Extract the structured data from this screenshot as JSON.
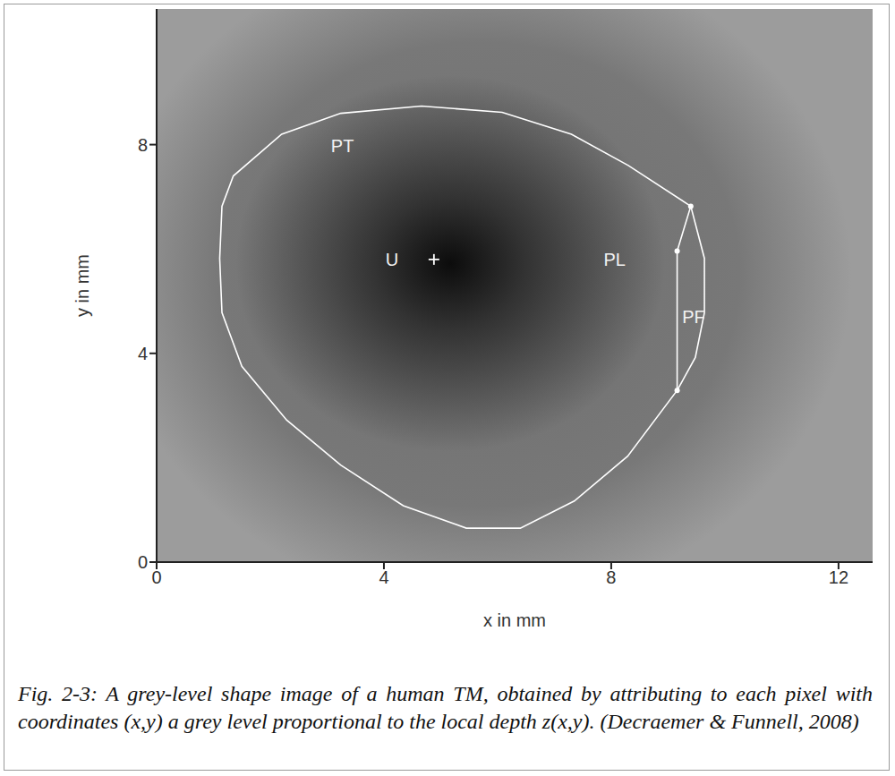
{
  "chart_data": {
    "type": "line",
    "xlabel": "x in mm",
    "ylabel": "y in mm",
    "xlim": [
      0,
      12.6
    ],
    "xticks": [
      0,
      4,
      8,
      12
    ],
    "ylim": [
      0,
      10.6
    ],
    "yticks": [
      0,
      4,
      8
    ],
    "grid": false,
    "series": [
      {
        "color": "#ffffff",
        "marker": "none",
        "line_style": "solid",
        "x": [
          4.66,
          6.08,
          7.3,
          8.3,
          9.4,
          9.64,
          9.64,
          9.48,
          9.16,
          8.29,
          7.35,
          6.4,
          5.45,
          4.34,
          3.24,
          2.29,
          1.5,
          1.15,
          1.11,
          1.15,
          1.35,
          2.2,
          3.24,
          4.66
        ],
        "y": [
          8.74,
          8.62,
          8.2,
          7.6,
          6.82,
          5.82,
          4.78,
          3.92,
          3.29,
          2.03,
          1.17,
          0.65,
          0.65,
          1.08,
          1.86,
          2.72,
          3.75,
          4.78,
          5.82,
          6.82,
          7.4,
          8.2,
          8.6,
          8.74
        ]
      },
      {
        "color": "#ffffff",
        "marker": "circle",
        "line_style": "solid",
        "x": [
          9.4,
          9.16,
          9.16
        ],
        "y": [
          6.82,
          5.96,
          3.29
        ]
      },
      {
        "color": "#ffffff",
        "marker": "cross",
        "line_style": "none",
        "x": [
          4.88
        ],
        "y": [
          5.8
        ]
      }
    ],
    "annotations": [
      {
        "text": "PT",
        "x": 3.27,
        "y": 7.97
      },
      {
        "text": "U",
        "x": 4.14,
        "y": 5.8
      },
      {
        "text": "PL",
        "x": 8.06,
        "y": 5.8
      },
      {
        "text": "PF",
        "x": 9.45,
        "y": 4.7
      }
    ],
    "caption": "Fig. 2-3: A grey-level shape image of a human TM, obtained by attributing to each pixel with coordinates (x,y) a grey level proportional to the local depth z(x,y). (Decraemer & Funnell, 2008)"
  }
}
